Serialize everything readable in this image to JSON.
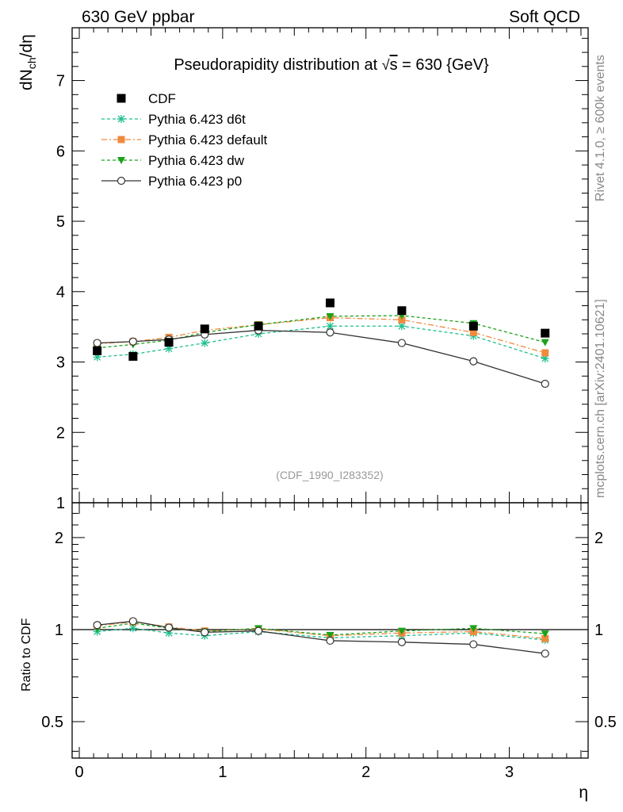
{
  "header": {
    "left": "630 GeV ppbar",
    "right": "Soft QCD"
  },
  "side_labels": {
    "top": "Rivet 4.1.0, ≥ 600k events",
    "bottom": "mcplots.cern.ch [arXiv:2401.10621]"
  },
  "chart_data": {
    "type": "line",
    "title_prefix": "Pseudorapidity distribution at ",
    "title_sqrt": "√",
    "title_s": "s",
    "title_suffix": " = 630 {GeV}",
    "ylabel": "dN",
    "ylabel_sub": "ch",
    "ylabel_tail": "/dη",
    "xlabel": "η",
    "ratio_ylabel": "Ratio to CDF",
    "watermark": "(CDF_1990_I283352)",
    "xlim": [
      -0.05,
      3.55
    ],
    "ylim": [
      1.0,
      7.75
    ],
    "ratio_ylim": [
      0.38,
      2.6
    ],
    "x_ticks": [
      "0",
      "1",
      "2",
      "3"
    ],
    "y_ticks": [
      "1",
      "2",
      "3",
      "4",
      "5",
      "6",
      "7"
    ],
    "ratio_ticks_left": [
      "0.5",
      "1",
      "2"
    ],
    "ratio_ticks_right": [
      "0.5",
      "1",
      "2"
    ],
    "x": [
      0.125,
      0.375,
      0.625,
      0.875,
      1.25,
      1.75,
      2.25,
      2.75,
      3.25
    ],
    "data": {
      "name": "CDF",
      "values": [
        3.16,
        3.08,
        3.28,
        3.47,
        3.51,
        3.84,
        3.73,
        3.51,
        3.41
      ],
      "color": "#000000"
    },
    "series": [
      {
        "name": "Pythia 6.423 d6t",
        "color": "#1fbf8f",
        "marker": "star",
        "values": [
          3.07,
          3.11,
          3.19,
          3.27,
          3.4,
          3.51,
          3.51,
          3.37,
          3.05
        ],
        "ratio": [
          0.985,
          1.01,
          0.975,
          0.955,
          0.985,
          0.94,
          0.955,
          0.975,
          0.925
        ]
      },
      {
        "name": "Pythia 6.423 default",
        "color": "#f08a3c",
        "marker": "square",
        "values": [
          3.26,
          3.29,
          3.35,
          3.45,
          3.53,
          3.63,
          3.6,
          3.42,
          3.13
        ],
        "ratio": [
          1.03,
          1.06,
          1.02,
          0.99,
          1.005,
          0.955,
          0.975,
          0.985,
          0.935
        ]
      },
      {
        "name": "Pythia 6.423 dw",
        "color": "#1aa31a",
        "marker": "triangle-down",
        "values": [
          3.2,
          3.25,
          3.31,
          3.42,
          3.53,
          3.65,
          3.66,
          3.55,
          3.28
        ],
        "ratio": [
          1.01,
          1.05,
          1.01,
          0.985,
          1.01,
          0.96,
          0.99,
          1.01,
          0.97
        ]
      },
      {
        "name": "Pythia 6.423 p0",
        "color": "#333333",
        "marker": "circle",
        "values": [
          3.27,
          3.29,
          3.32,
          3.39,
          3.45,
          3.42,
          3.27,
          3.01,
          2.69
        ],
        "ratio": [
          1.035,
          1.065,
          1.015,
          0.98,
          0.99,
          0.92,
          0.91,
          0.895,
          0.835
        ]
      }
    ]
  }
}
